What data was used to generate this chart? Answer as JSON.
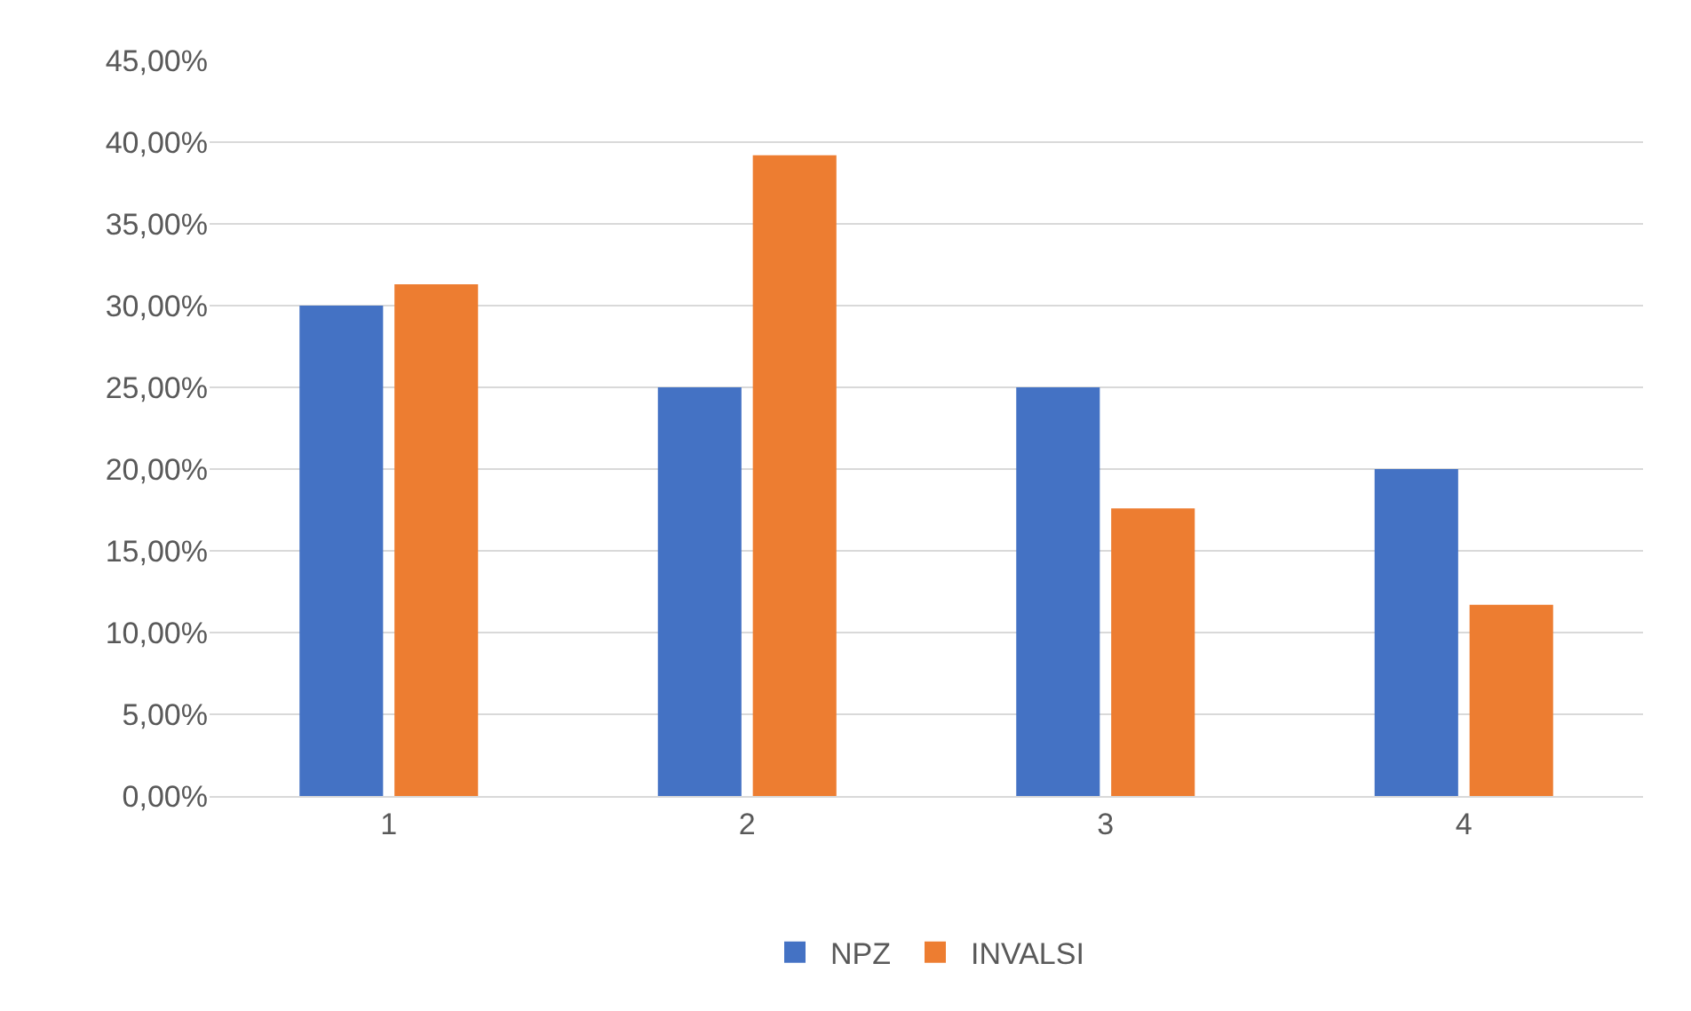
{
  "chart_data": {
    "type": "bar",
    "categories": [
      "1",
      "2",
      "3",
      "4"
    ],
    "series": [
      {
        "name": "NPZ",
        "color": "#4472c4",
        "values": [
          30,
          25,
          25,
          20
        ]
      },
      {
        "name": "INVALSI",
        "color": "#ed7d31",
        "values": [
          31.3,
          39.2,
          17.6,
          11.7
        ]
      }
    ],
    "ylim": [
      0,
      45
    ],
    "yticks": [
      {
        "value": 0,
        "label": "0,00%"
      },
      {
        "value": 5,
        "label": "5,00%"
      },
      {
        "value": 10,
        "label": "10,00%"
      },
      {
        "value": 15,
        "label": "15,00%"
      },
      {
        "value": 20,
        "label": "20,00%"
      },
      {
        "value": 25,
        "label": "25,00%"
      },
      {
        "value": 30,
        "label": "30,00%"
      },
      {
        "value": 35,
        "label": "35,00%"
      },
      {
        "value": 40,
        "label": "40,00%"
      },
      {
        "value": 45,
        "label": "45,00%"
      }
    ],
    "grid": "y",
    "legend": "bottom"
  }
}
